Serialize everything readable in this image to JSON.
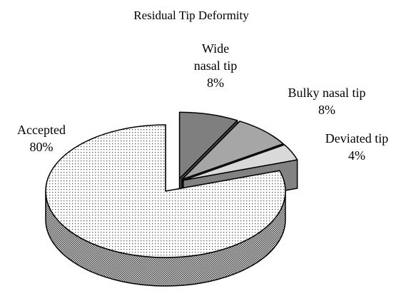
{
  "chart_data": {
    "type": "pie",
    "title": "Residual Tip Deformity",
    "categories": [
      "Wide nasal tip",
      "Bulky nasal tip",
      "Deviated tip",
      "Accepted"
    ],
    "values": [
      8,
      8,
      4,
      80
    ],
    "value_labels": [
      "8%",
      "8%",
      "4%",
      "80%"
    ],
    "colors": [
      "#7f7f7f",
      "#a6a6a6",
      "#d9d9d9",
      "#ffffff"
    ],
    "patterns": [
      "solid",
      "solid",
      "solid",
      "dotted"
    ]
  }
}
